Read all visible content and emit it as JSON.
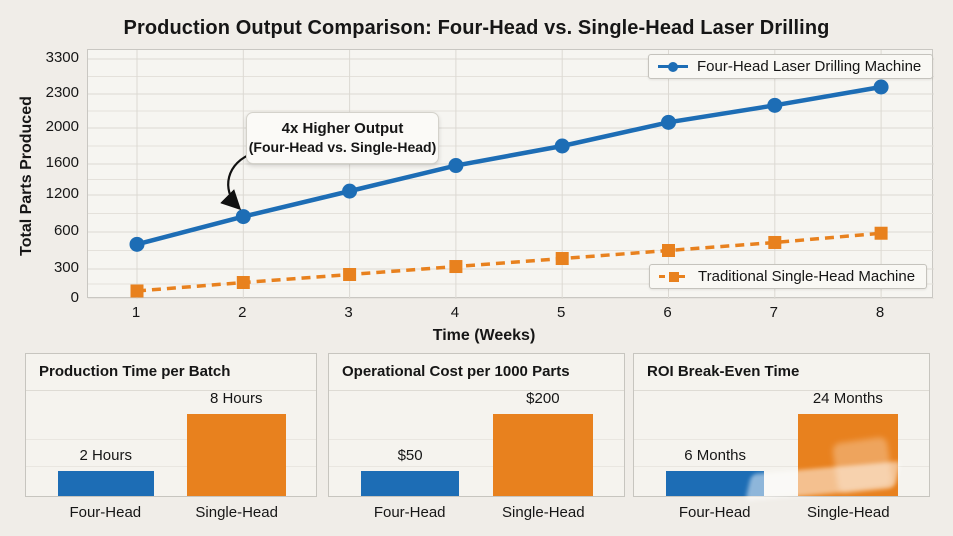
{
  "chart_data": [
    {
      "id": "main-line-chart",
      "type": "line",
      "title": "Production Output Comparison: Four-Head vs. Single-Head Laser Drilling",
      "xlabel": "Time (Weeks)",
      "ylabel": "Total Parts Produced",
      "x": [
        1,
        2,
        3,
        4,
        5,
        6,
        7,
        8
      ],
      "x_tick_labels": [
        "1",
        "2",
        "3",
        "4",
        "5",
        "6",
        "7",
        "8"
      ],
      "y_tick_labels": [
        "0",
        "300",
        "600",
        "1200",
        "1600",
        "2000",
        "2300",
        "3300"
      ],
      "y_tick_values": [
        0,
        300,
        600,
        1200,
        1600,
        2000,
        2300,
        3300
      ],
      "ylim": [
        0,
        3300
      ],
      "grid": true,
      "legend_position": "boxed legends inside plot: top-right (series 1) and mid-right (series 2)",
      "series": [
        {
          "name": "Four-Head Laser Drilling Machine",
          "color": "#1d6db5",
          "line_style": "solid",
          "marker": "circle",
          "values": [
            500,
            850,
            1250,
            1580,
            1800,
            2050,
            2200,
            2500
          ]
        },
        {
          "name": "Traditional Single-Head Machine",
          "color": "#e8811e",
          "line_style": "dashed",
          "marker": "square",
          "values": [
            80,
            165,
            245,
            320,
            385,
            450,
            515,
            590
          ]
        }
      ],
      "annotation": {
        "line1": "4x Higher Output",
        "line2": "(Four-Head vs. Single-Head)",
        "points_to": "Four-Head series at week 2"
      }
    },
    {
      "id": "production-time",
      "type": "bar",
      "title": "Production Time per Batch",
      "categories": [
        "Four-Head",
        "Single-Head"
      ],
      "values": [
        2,
        8
      ],
      "value_labels": [
        "2 Hours",
        "8 Hours"
      ],
      "colors": [
        "#1d6db5",
        "#e8811e"
      ]
    },
    {
      "id": "operational-cost",
      "type": "bar",
      "title": "Operational Cost per 1000 Parts",
      "categories": [
        "Four-Head",
        "Single-Head"
      ],
      "values": [
        50,
        200
      ],
      "value_labels": [
        "$50",
        "$200"
      ],
      "colors": [
        "#1d6db5",
        "#e8811e"
      ]
    },
    {
      "id": "roi-break-even",
      "type": "bar",
      "title": "ROI Break-Even Time",
      "categories": [
        "Four-Head",
        "Single-Head"
      ],
      "values": [
        6,
        24
      ],
      "value_labels": [
        "6 Months",
        "24 Months"
      ],
      "colors": [
        "#1d6db5",
        "#e8811e"
      ]
    }
  ],
  "colors": {
    "four_head_blue": "#1d6db5",
    "single_head_orange": "#e8811e",
    "background": "#f0ede8",
    "plot_background": "#f6f5f1"
  }
}
